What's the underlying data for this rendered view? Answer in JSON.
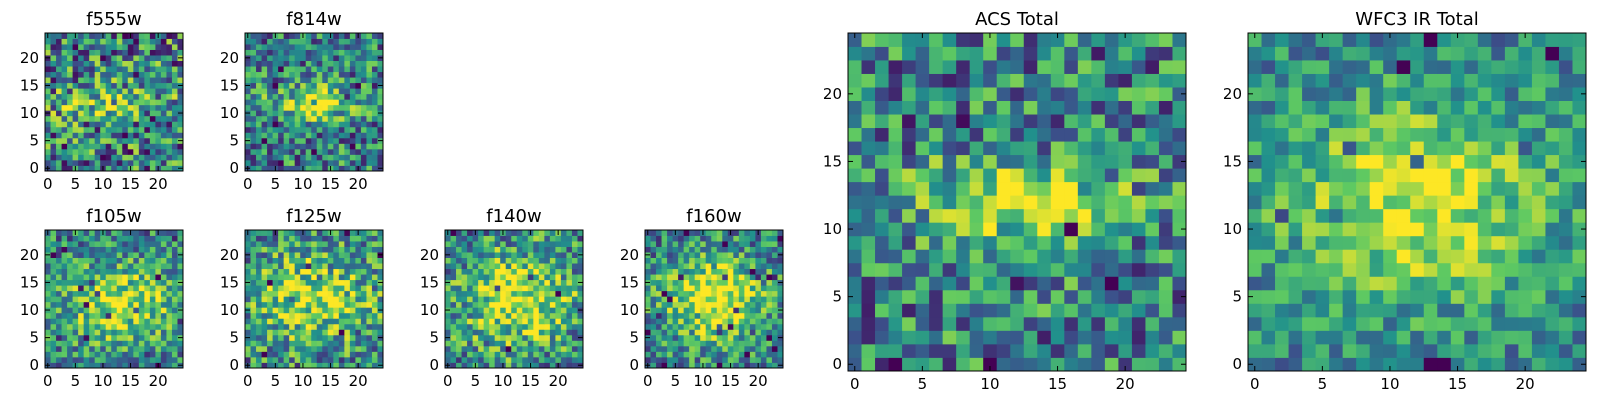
{
  "figure": {
    "colormap": "viridis",
    "colormap_stops": [
      "#440154",
      "#3b528b",
      "#21918c",
      "#5ec962",
      "#fde725"
    ]
  },
  "chart_data": [
    {
      "type": "heatmap",
      "title": "f555w",
      "grid": false,
      "image_size": 25,
      "xlim": [
        -0.5,
        24.5
      ],
      "ylim": [
        -0.5,
        24.5
      ],
      "xticks": [
        0,
        5,
        10,
        15,
        20
      ],
      "yticks": [
        0,
        5,
        10,
        15,
        20
      ],
      "xtick_labels": [
        "0",
        "5",
        "10",
        "15",
        "20"
      ],
      "ytick_labels": [
        "0",
        "5",
        "10",
        "15",
        "20"
      ],
      "pattern": {
        "source_center": [
          11,
          12
        ],
        "source_radius": [
          7,
          2.5
        ],
        "peak": 0.25,
        "noise": 0.55,
        "seed": 11
      },
      "xlabel": "",
      "ylabel": ""
    },
    {
      "type": "heatmap",
      "title": "f814w",
      "grid": false,
      "image_size": 25,
      "xlim": [
        -0.5,
        24.5
      ],
      "ylim": [
        -0.5,
        24.5
      ],
      "xticks": [
        0,
        5,
        10,
        15,
        20
      ],
      "yticks": [
        0,
        5,
        10,
        15,
        20
      ],
      "xtick_labels": [
        "0",
        "5",
        "10",
        "15",
        "20"
      ],
      "ytick_labels": [
        "0",
        "5",
        "10",
        "15",
        "20"
      ],
      "pattern": {
        "source_center": [
          12,
          12
        ],
        "source_radius": [
          5,
          2
        ],
        "peak": 0.55,
        "noise": 0.45,
        "seed": 23
      },
      "xlabel": "",
      "ylabel": ""
    },
    {
      "type": "heatmap",
      "title": "f105w",
      "grid": false,
      "image_size": 25,
      "xlim": [
        -0.5,
        24.5
      ],
      "ylim": [
        -0.5,
        24.5
      ],
      "xticks": [
        0,
        5,
        10,
        15,
        20
      ],
      "yticks": [
        0,
        5,
        10,
        15,
        20
      ],
      "xtick_labels": [
        "0",
        "5",
        "10",
        "15",
        "20"
      ],
      "ytick_labels": [
        "0",
        "5",
        "10",
        "15",
        "20"
      ],
      "pattern": {
        "source_center": [
          13,
          11
        ],
        "source_radius": [
          7,
          5
        ],
        "peak": 0.45,
        "noise": 0.4,
        "seed": 37
      },
      "xlabel": "",
      "ylabel": ""
    },
    {
      "type": "heatmap",
      "title": "f125w",
      "grid": false,
      "image_size": 25,
      "xlim": [
        -0.5,
        24.5
      ],
      "ylim": [
        -0.5,
        24.5
      ],
      "xticks": [
        0,
        5,
        10,
        15,
        20
      ],
      "yticks": [
        0,
        5,
        10,
        15,
        20
      ],
      "xtick_labels": [
        "0",
        "5",
        "10",
        "15",
        "20"
      ],
      "ytick_labels": [
        "0",
        "5",
        "10",
        "15",
        "20"
      ],
      "pattern": {
        "source_center": [
          12,
          12
        ],
        "source_radius": [
          8,
          6
        ],
        "peak": 0.4,
        "noise": 0.45,
        "seed": 41
      },
      "xlabel": "",
      "ylabel": ""
    },
    {
      "type": "heatmap",
      "title": "f140w",
      "grid": false,
      "image_size": 25,
      "xlim": [
        -0.5,
        24.5
      ],
      "ylim": [
        -0.5,
        24.5
      ],
      "xticks": [
        0,
        5,
        10,
        15,
        20
      ],
      "yticks": [
        0,
        5,
        10,
        15,
        20
      ],
      "xtick_labels": [
        "0",
        "5",
        "10",
        "15",
        "20"
      ],
      "ytick_labels": [
        "0",
        "5",
        "10",
        "15",
        "20"
      ],
      "pattern": {
        "source_center": [
          13,
          12
        ],
        "source_radius": [
          7,
          6
        ],
        "peak": 0.5,
        "noise": 0.45,
        "seed": 53
      },
      "xlabel": "",
      "ylabel": ""
    },
    {
      "type": "heatmap",
      "title": "f160w",
      "grid": false,
      "image_size": 25,
      "xlim": [
        -0.5,
        24.5
      ],
      "ylim": [
        -0.5,
        24.5
      ],
      "xticks": [
        0,
        5,
        10,
        15,
        20
      ],
      "yticks": [
        0,
        5,
        10,
        15,
        20
      ],
      "xtick_labels": [
        "0",
        "5",
        "10",
        "15",
        "20"
      ],
      "ytick_labels": [
        "0",
        "5",
        "10",
        "15",
        "20"
      ],
      "pattern": {
        "source_center": [
          12,
          12
        ],
        "source_radius": [
          6,
          5
        ],
        "peak": 0.6,
        "noise": 0.4,
        "seed": 67
      },
      "xlabel": "",
      "ylabel": ""
    },
    {
      "type": "heatmap",
      "title": "ACS Total",
      "grid": false,
      "image_size": 25,
      "xlim": [
        -0.5,
        24.5
      ],
      "ylim": [
        -0.5,
        24.5
      ],
      "xticks": [
        0,
        5,
        10,
        15,
        20
      ],
      "yticks": [
        0,
        5,
        10,
        15,
        20
      ],
      "xtick_labels": [
        "0",
        "5",
        "10",
        "15",
        "20"
      ],
      "ytick_labels": [
        "0",
        "5",
        "10",
        "15",
        "20"
      ],
      "pattern": {
        "source_center": [
          12,
          12
        ],
        "source_radius": [
          5,
          2
        ],
        "peak": 0.55,
        "noise": 0.45,
        "seed": 79
      },
      "xlabel": "",
      "ylabel": ""
    },
    {
      "type": "heatmap",
      "title": "WFC3 IR Total",
      "grid": false,
      "image_size": 25,
      "xlim": [
        -0.5,
        24.5
      ],
      "ylim": [
        -0.5,
        24.5
      ],
      "xticks": [
        0,
        5,
        10,
        15,
        20
      ],
      "yticks": [
        0,
        5,
        10,
        15,
        20
      ],
      "xtick_labels": [
        "0",
        "5",
        "10",
        "15",
        "20"
      ],
      "ytick_labels": [
        "0",
        "5",
        "10",
        "15",
        "20"
      ],
      "pattern": {
        "source_center": [
          12,
          12
        ],
        "source_radius": [
          7,
          5
        ],
        "peak": 0.5,
        "noise": 0.3,
        "seed": 97
      },
      "xlabel": "",
      "ylabel": ""
    }
  ]
}
